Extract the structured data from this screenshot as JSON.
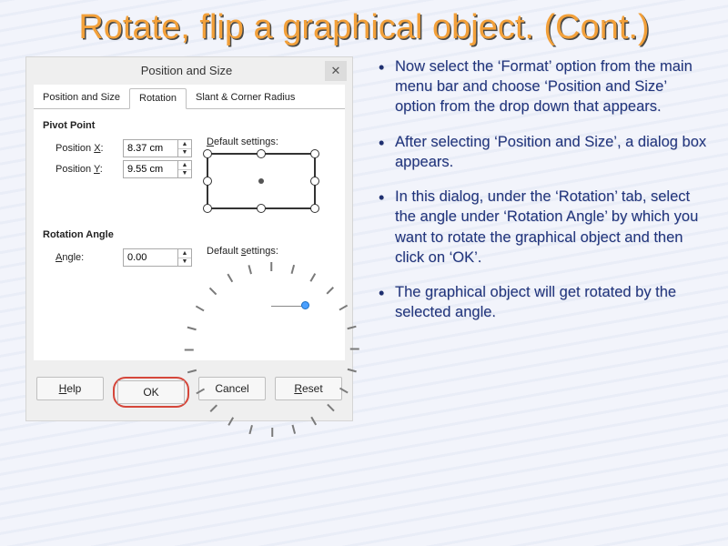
{
  "slide": {
    "title": "Rotate, flip a graphical object. (Cont.)",
    "title_color": "#f2a03a",
    "title_shadow": "#4a4a48",
    "bullet_color": "#21357e",
    "bullets": [
      "Now select the ‘Format’ option from the main menu bar and choose ‘Position and Size’ option from the drop down that appears.",
      "After selecting ‘Position and Size’, a dialog box appears.",
      "In this dialog, under the ‘Rotation’ tab, select the angle under ‘Rotation Angle’ by which you want to rotate the graphical object and then click on ‘OK’.",
      "The graphical object will get rotated by the selected angle."
    ]
  },
  "dialog": {
    "title": "Position and Size",
    "close_glyph": "✕",
    "tabs": {
      "t1": "Position and Size",
      "t2": "Rotation",
      "t3": "Slant & Corner Radius",
      "active": "t2"
    },
    "pivot": {
      "heading": "Pivot Point",
      "x_label_pre": "Position ",
      "x_label_u": "X",
      "x_label_post": ":",
      "y_label_pre": "Position ",
      "y_label_u": "Y",
      "y_label_post": ":",
      "x_value": "8.37 cm",
      "y_value": "9.55 cm",
      "defaults_label_u": "D",
      "defaults_label_rest": "efault settings:"
    },
    "rotation": {
      "heading": "Rotation Angle",
      "angle_label_u": "A",
      "angle_label_rest": "ngle:",
      "angle_value": "0.00",
      "defaults_label_pre": "Default ",
      "defaults_label_u": "s",
      "defaults_label_rest": "ettings:",
      "dial_tick_color": "#7a7a7a",
      "dial_knob_angle_deg": 0
    },
    "buttons": {
      "help_u": "H",
      "help_rest": "elp",
      "ok": "OK",
      "cancel": "Cancel",
      "reset_u": "R",
      "reset_rest": "eset",
      "highlight_color": "#d5463a"
    },
    "bg": "#efefef",
    "panel_bg": "#ffffff"
  }
}
